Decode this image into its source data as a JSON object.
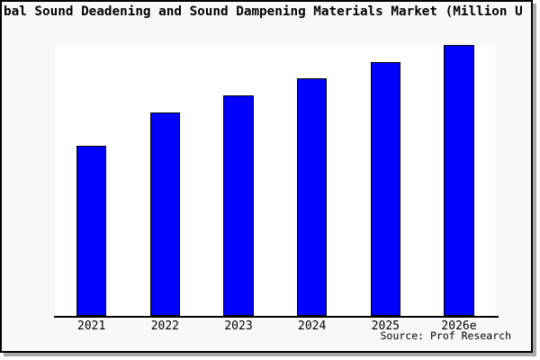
{
  "title": "bal Sound Deadening and Sound Dampening Materials Market (Million U",
  "source_caption": "Source: Prof Research",
  "colors": {
    "bar_fill": "#0000ff",
    "bar_edge": "#000000",
    "plot_background": "#ffffff",
    "panel_background": "#f8f8f8",
    "frame_border": "#000000",
    "frame_shadow": "#a9a9a9",
    "text": "#000000"
  },
  "chart_data": {
    "type": "bar",
    "title": "bal Sound Deadening and Sound Dampening Materials Market (Million U",
    "categories": [
      "2021",
      "2022",
      "2023",
      "2024",
      "2025",
      "2026e"
    ],
    "values": [
      62.9,
      75.3,
      81.6,
      87.8,
      93.9,
      100
    ],
    "values_note": "relative heights, % of tallest bar (2026e); no y-axis scale shown in chart",
    "xlabel": "",
    "ylabel": "",
    "ylim": [
      0,
      100
    ],
    "grid": false,
    "legend": false,
    "y_axis_labels_shown": false
  }
}
